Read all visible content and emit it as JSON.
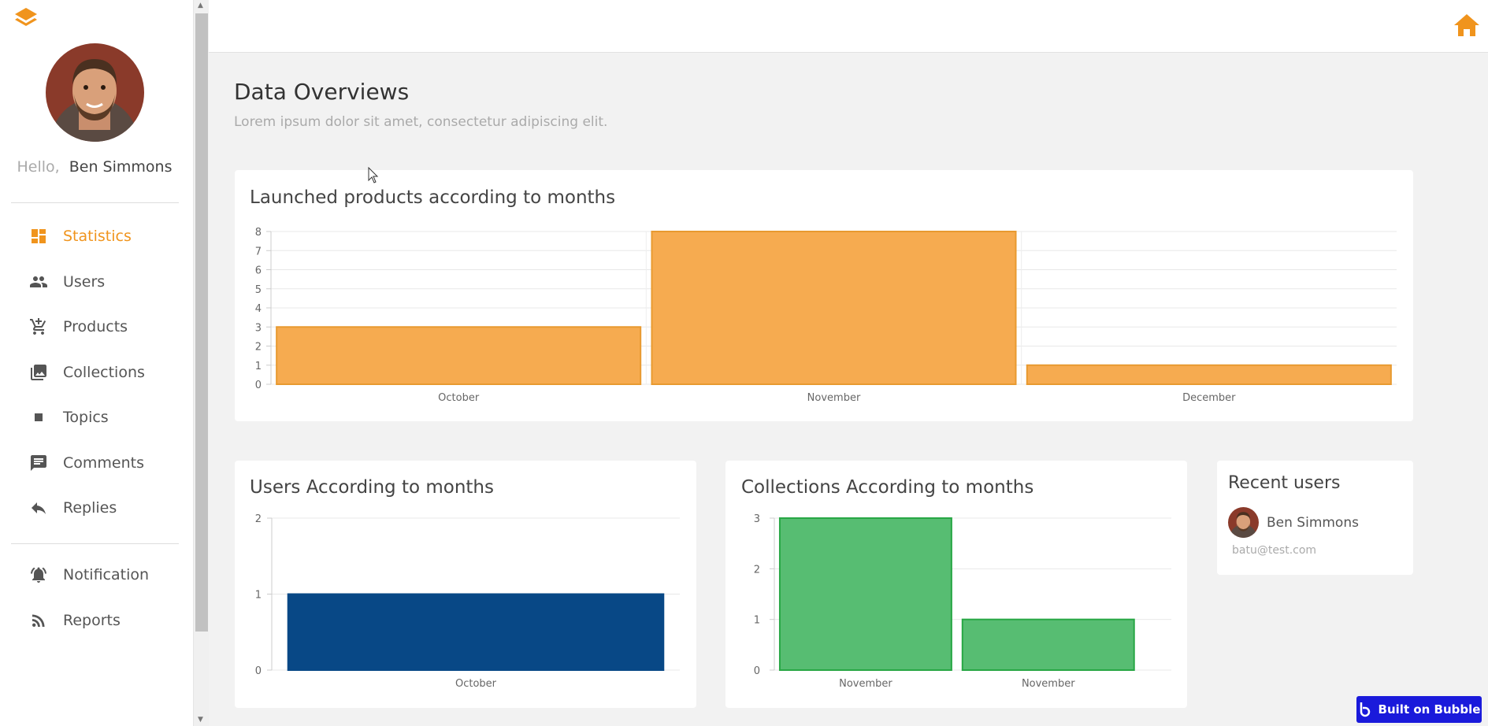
{
  "sidebar": {
    "greeting_hello": "Hello,",
    "user_name": "Ben Simmons",
    "items": [
      {
        "label": "Statistics",
        "icon": "dashboard-icon",
        "active": true
      },
      {
        "label": "Users",
        "icon": "users-icon"
      },
      {
        "label": "Products",
        "icon": "cart-icon"
      },
      {
        "label": "Collections",
        "icon": "gallery-icon"
      },
      {
        "label": "Topics",
        "icon": "square-icon"
      },
      {
        "label": "Comments",
        "icon": "comment-icon"
      },
      {
        "label": "Replies",
        "icon": "reply-icon"
      },
      {
        "label": "Notification",
        "icon": "bell-icon"
      },
      {
        "label": "Reports",
        "icon": "rss-icon"
      }
    ]
  },
  "colors": {
    "accent": "#f0941d",
    "orange_bar": "#f6ab50",
    "orange_border": "#e89a30",
    "blue_bar": "#084886",
    "green_bar": "#57bd72",
    "green_border": "#28a745",
    "badge": "#1a1adb"
  },
  "main": {
    "title": "Data Overviews",
    "subtitle": "Lorem ipsum dolor sit amet, consectetur adipiscing elit."
  },
  "charts": [
    {
      "title": "Launched products according to months",
      "chart_data": {
        "type": "bar",
        "categories": [
          "October",
          "November",
          "December"
        ],
        "values": [
          3,
          8,
          1
        ],
        "ylim": [
          0,
          8
        ],
        "yticks": [
          "0",
          "1",
          "2",
          "3",
          "4",
          "5",
          "6",
          "7",
          "8"
        ]
      }
    },
    {
      "title": "Users According to months",
      "chart_data": {
        "type": "bar",
        "categories": [
          "October"
        ],
        "values": [
          1
        ],
        "ylim": [
          0,
          2
        ],
        "yticks": [
          "0",
          "1",
          "2"
        ]
      }
    },
    {
      "title": "Collections According to months",
      "chart_data": {
        "type": "bar",
        "categories": [
          "November",
          "November"
        ],
        "values": [
          3,
          1
        ],
        "ylim": [
          0,
          3
        ],
        "yticks": [
          "0",
          "1",
          "2",
          "3"
        ]
      }
    }
  ],
  "recent_users": {
    "title": "Recent users",
    "users": [
      {
        "name": "Ben Simmons",
        "email": "batu@test.com"
      }
    ]
  },
  "badge": {
    "label": "Built on Bubble"
  }
}
